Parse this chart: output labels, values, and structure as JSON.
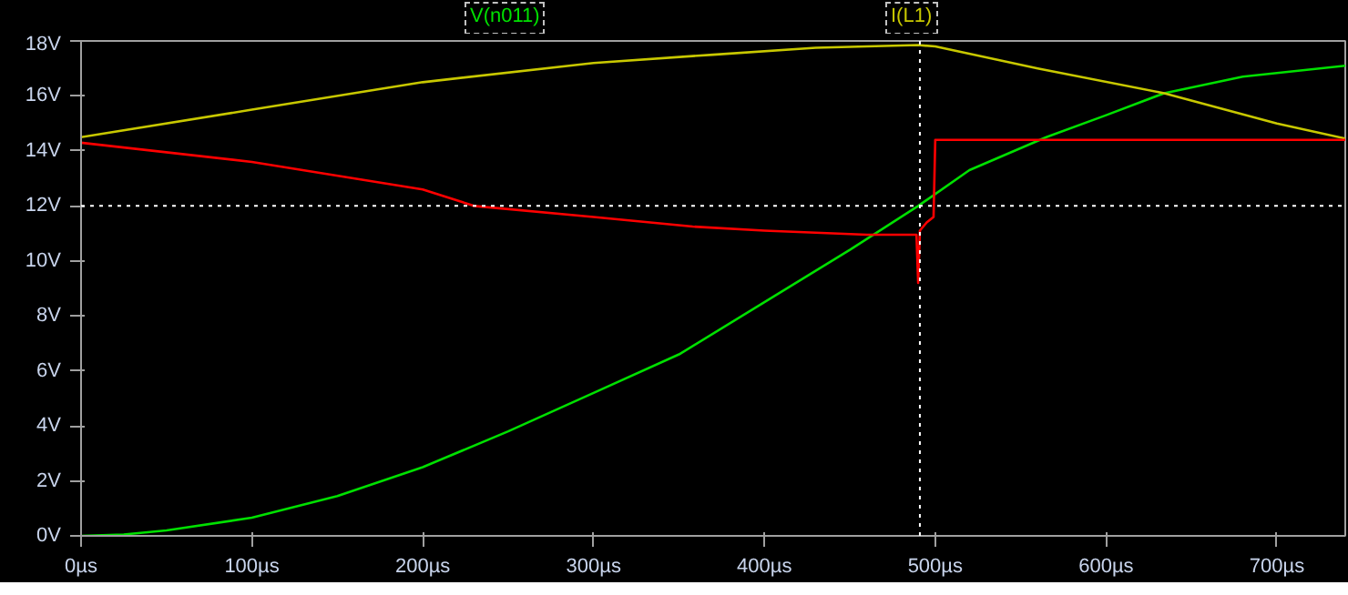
{
  "chart_data": {
    "type": "line",
    "xlim": [
      0,
      740
    ],
    "ylim": [
      0,
      18
    ],
    "xticks": [
      {
        "value": 0,
        "label": "0µs"
      },
      {
        "value": 100,
        "label": "100µs"
      },
      {
        "value": 200,
        "label": "200µs"
      },
      {
        "value": 300,
        "label": "300µs"
      },
      {
        "value": 400,
        "label": "400µs"
      },
      {
        "value": 500,
        "label": "500µs"
      },
      {
        "value": 600,
        "label": "600µs"
      },
      {
        "value": 700,
        "label": "700µs"
      }
    ],
    "yticks": [
      {
        "value": 0,
        "label": "0V"
      },
      {
        "value": 2,
        "label": "2V"
      },
      {
        "value": 4,
        "label": "4V"
      },
      {
        "value": 6,
        "label": "6V"
      },
      {
        "value": 8,
        "label": "8V"
      },
      {
        "value": 10,
        "label": "10V"
      },
      {
        "value": 12,
        "label": "12V"
      },
      {
        "value": 14,
        "label": "14V"
      },
      {
        "value": 16,
        "label": "16V"
      },
      {
        "value": 18,
        "label": "18V"
      }
    ],
    "grid": false,
    "marker": "none",
    "line_style": "solid",
    "series": [
      {
        "name": "V(n011)",
        "color": "#00e000",
        "x": [
          0,
          25,
          50,
          100,
          150,
          200,
          250,
          300,
          350,
          400,
          450,
          490,
          520,
          565,
          600,
          634,
          680,
          740
        ],
        "values": [
          0,
          0.05,
          0.2,
          0.66,
          1.45,
          2.5,
          3.8,
          5.2,
          6.6,
          8.5,
          10.4,
          12,
          13.3,
          14.5,
          15.3,
          16.1,
          16.7,
          17.1
        ]
      },
      {
        "name": "I(L1)",
        "color": "#c8c800",
        "x": [
          0,
          100,
          200,
          300,
          370,
          430,
          490,
          500,
          560,
          634,
          700,
          740
        ],
        "values": [
          14.5,
          15.5,
          16.5,
          17.2,
          17.5,
          17.75,
          17.85,
          17.8,
          17,
          16.1,
          15,
          14.45
        ]
      },
      {
        "color": "#ff0000",
        "x": [
          0,
          100,
          200,
          230,
          300,
          358,
          400,
          460,
          489,
          490,
          491,
          495,
          499,
          500,
          740
        ],
        "values": [
          14.3,
          13.6,
          12.6,
          12,
          11.6,
          11.25,
          11.1,
          10.95,
          10.95,
          9.2,
          11.1,
          11.4,
          11.6,
          14.4,
          14.4
        ]
      }
    ],
    "ref_lines": [
      {
        "axis": "x",
        "value": 491,
        "color": "#ffffff",
        "line_style": "dotted"
      },
      {
        "axis": "y",
        "value": 12,
        "color": "#ffffff",
        "line_style": "dotted"
      }
    ]
  }
}
